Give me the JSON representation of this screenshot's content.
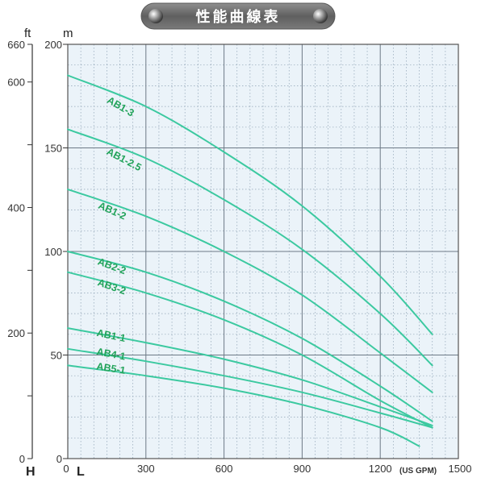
{
  "chart_data": {
    "type": "line",
    "title": "性能曲線表",
    "xlabel": "L",
    "x_unit": "(US GPM)",
    "y_left_label": "H",
    "y_left_unit": "ft",
    "y_right_unit": "m",
    "xlim": [
      0,
      1500
    ],
    "ylim_m": [
      0,
      200
    ],
    "ylim_ft": [
      0,
      660
    ],
    "x_ticks": [
      "0",
      "300",
      "600",
      "900",
      "1200",
      "1500"
    ],
    "m_ticks": [
      "0",
      "50",
      "100",
      "150",
      "200"
    ],
    "ft_ticks": [
      "0",
      "200",
      "400",
      "600",
      "660"
    ],
    "grid": true,
    "series_color": "#3cc9a0",
    "label_color": "#22a35a",
    "series": [
      {
        "name": "AB1-3",
        "x": [
          0,
          300,
          600,
          900,
          1200,
          1400
        ],
        "y": [
          185,
          170,
          148,
          122,
          88,
          60
        ]
      },
      {
        "name": "AB1-2.5",
        "x": [
          0,
          300,
          600,
          900,
          1200,
          1400
        ],
        "y": [
          159,
          145,
          125,
          101,
          70,
          45
        ]
      },
      {
        "name": "AB1-2",
        "x": [
          0,
          300,
          600,
          900,
          1200,
          1400
        ],
        "y": [
          130,
          117,
          100,
          79,
          51,
          32
        ]
      },
      {
        "name": "AB2-2",
        "x": [
          0,
          300,
          600,
          900,
          1200,
          1400
        ],
        "y": [
          100,
          90,
          76,
          58,
          35,
          18
        ]
      },
      {
        "name": "AB3-2",
        "x": [
          0,
          300,
          600,
          900,
          1200,
          1400
        ],
        "y": [
          90,
          80,
          67,
          50,
          28,
          15
        ]
      },
      {
        "name": "AB1-1",
        "x": [
          0,
          300,
          600,
          900,
          1200,
          1400
        ],
        "y": [
          63,
          56,
          48,
          38,
          25,
          16
        ]
      },
      {
        "name": "AB4-1",
        "x": [
          0,
          300,
          600,
          900,
          1200,
          1400
        ],
        "y": [
          53,
          47,
          40,
          32,
          22,
          15
        ]
      },
      {
        "name": "AB5-1",
        "x": [
          0,
          300,
          600,
          900,
          1200,
          1350
        ],
        "y": [
          45,
          40,
          34,
          26,
          15,
          6
        ]
      }
    ]
  }
}
